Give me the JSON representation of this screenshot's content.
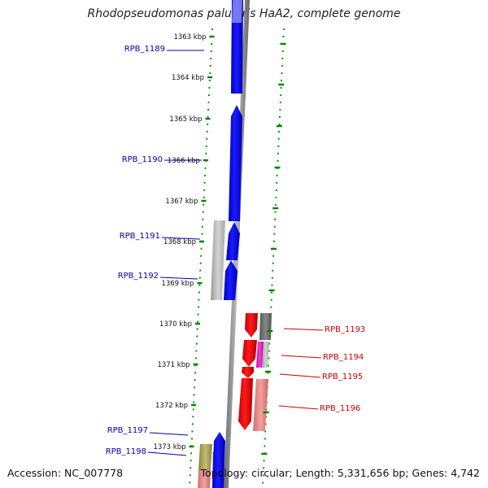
{
  "title": "Rhodopseudomonas palustris HaA2, complete genome",
  "accession_label": "Accession: NC_007778",
  "topology_label": "Topology: circular; Length: 5,331,656 bp; Genes: 4,742",
  "ticks": [
    {
      "kbp": 1363,
      "label": "1363 kbp"
    },
    {
      "kbp": 1364,
      "label": "1364 kbp"
    },
    {
      "kbp": 1365,
      "label": "1365 kbp"
    },
    {
      "kbp": 1366,
      "label": "1366 kbp"
    },
    {
      "kbp": 1367,
      "label": "1367 kbp"
    },
    {
      "kbp": 1368,
      "label": "1368 kbp"
    },
    {
      "kbp": 1369,
      "label": "1369 kbp"
    },
    {
      "kbp": 1370,
      "label": "1370 kbp"
    },
    {
      "kbp": 1371,
      "label": "1371 kbp"
    },
    {
      "kbp": 1372,
      "label": "1372 kbp"
    },
    {
      "kbp": 1373,
      "label": "1373 kbp"
    }
  ],
  "gene_labels": [
    {
      "id": "RPB_1189",
      "strand": "forward",
      "color": "#0000aa"
    },
    {
      "id": "RPB_1190",
      "strand": "forward",
      "color": "#0000aa"
    },
    {
      "id": "RPB_1191",
      "strand": "forward",
      "color": "#0000aa"
    },
    {
      "id": "RPB_1192",
      "strand": "forward",
      "color": "#0000aa"
    },
    {
      "id": "RPB_1193",
      "strand": "reverse",
      "color": "#cc0000"
    },
    {
      "id": "RPB_1194",
      "strand": "reverse",
      "color": "#cc0000"
    },
    {
      "id": "RPB_1195",
      "strand": "reverse",
      "color": "#cc0000"
    },
    {
      "id": "RPB_1196",
      "strand": "reverse",
      "color": "#cc0000"
    },
    {
      "id": "RPB_1197",
      "strand": "forward",
      "color": "#0000aa"
    },
    {
      "id": "RPB_1198",
      "strand": "forward",
      "color": "#0000aa"
    }
  ],
  "colors": {
    "forward_gene": "#0000ee",
    "reverse_gene": "#ee0000",
    "backbone": "#888888",
    "tick": "#008800",
    "forward_label": "#0000aa",
    "reverse_label": "#cc0000"
  }
}
